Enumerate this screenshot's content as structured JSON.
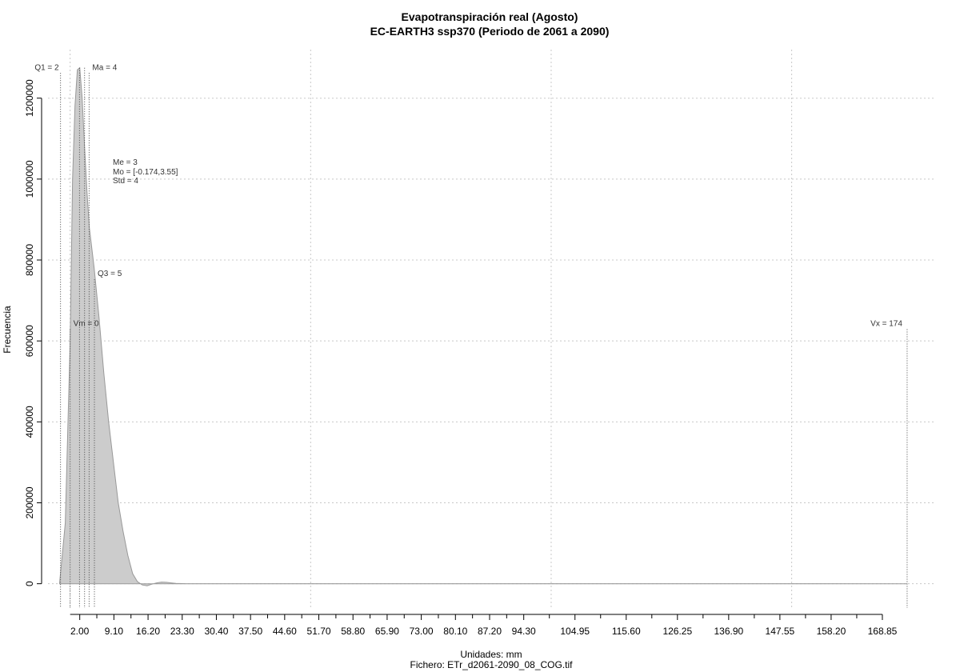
{
  "chart_data": {
    "type": "area",
    "title": "Evapotranspiración real (Agosto)",
    "subtitle": "EC-EARTH3 ssp370 (Periodo de 2061 a 2090)",
    "xlabel": "Unidades: mm",
    "ylabel": "Frecuencia",
    "file_label": "Fichero: ETr_d2061-2090_08_COG.tif",
    "xlim": [
      -4.6,
      180
    ],
    "ylim": [
      -60000,
      1320000
    ],
    "grid": true,
    "fill_color": "#cccccc",
    "line_color": "#999999",
    "x_ticks": [
      {
        "value": 2.0,
        "label": "2.00"
      },
      {
        "value": 9.1,
        "label": "9.10"
      },
      {
        "value": 16.2,
        "label": "16.20"
      },
      {
        "value": 23.3,
        "label": "23.30"
      },
      {
        "value": 30.4,
        "label": "30.40"
      },
      {
        "value": 37.5,
        "label": "37.50"
      },
      {
        "value": 44.6,
        "label": "44.60"
      },
      {
        "value": 51.7,
        "label": "51.70"
      },
      {
        "value": 58.8,
        "label": "58.80"
      },
      {
        "value": 65.9,
        "label": "65.90"
      },
      {
        "value": 73.0,
        "label": "73.00"
      },
      {
        "value": 80.1,
        "label": "80.10"
      },
      {
        "value": 87.2,
        "label": "87.20"
      },
      {
        "value": 94.3,
        "label": "94.30"
      },
      {
        "value": 104.95,
        "label": "104.95"
      },
      {
        "value": 115.6,
        "label": "115.60"
      },
      {
        "value": 126.25,
        "label": "126.25"
      },
      {
        "value": 136.9,
        "label": "136.90"
      },
      {
        "value": 147.55,
        "label": "147.55"
      },
      {
        "value": 158.2,
        "label": "158.20"
      },
      {
        "value": 168.85,
        "label": "168.85"
      }
    ],
    "y_ticks": [
      {
        "value": 0,
        "label": "0"
      },
      {
        "value": 200000,
        "label": "200000"
      },
      {
        "value": 400000,
        "label": "400000"
      },
      {
        "value": 600000,
        "label": "600000"
      },
      {
        "value": 800000,
        "label": "800000"
      },
      {
        "value": 1000000,
        "label": "1000000"
      },
      {
        "value": 1200000,
        "label": "1200000"
      }
    ],
    "x_grid": [
      0,
      50,
      100,
      150
    ],
    "y_grid": [
      0,
      200000,
      400000,
      600000,
      800000,
      1000000,
      1200000
    ],
    "density": {
      "x": [
        -2.2,
        -1,
        0,
        0.5,
        1,
        1.5,
        2,
        2.5,
        3,
        3.5,
        4,
        5,
        6,
        7,
        8,
        9,
        10,
        11,
        12,
        13,
        14,
        15,
        16,
        17,
        18,
        19,
        20,
        21,
        22,
        24,
        30,
        40,
        60,
        100,
        140,
        174
      ],
      "y": [
        0,
        150000,
        600000,
        1000000,
        1180000,
        1270000,
        1275000,
        1200000,
        1080000,
        970000,
        880000,
        780000,
        660000,
        520000,
        400000,
        300000,
        200000,
        130000,
        70000,
        25000,
        5000,
        -3000,
        -5000,
        -1000,
        2000,
        4000,
        3500,
        2000,
        800,
        200,
        100,
        50,
        20,
        10,
        5,
        0
      ]
    },
    "vlines": [
      {
        "x": -2.0,
        "label": "Q1 = 2",
        "label_y": 1270000
      },
      {
        "x": 1.95,
        "label": "",
        "label_y": 0
      },
      {
        "x": 3.95,
        "label": "Ma = 4",
        "label_y": 1270000
      },
      {
        "x": 3.0,
        "label": "",
        "label_y": 0
      },
      {
        "x": 5.05,
        "label": "Q3 = 5",
        "label_y": 760000
      },
      {
        "x": 0.0,
        "label": "Vm = 0",
        "label_y": 637000
      },
      {
        "x": 174.0,
        "label": "Vx = 174",
        "label_y": 637000
      }
    ],
    "stats_text": [
      "Me = 3",
      "Mo = [-0.174,3.55]",
      "Std = 4"
    ]
  }
}
